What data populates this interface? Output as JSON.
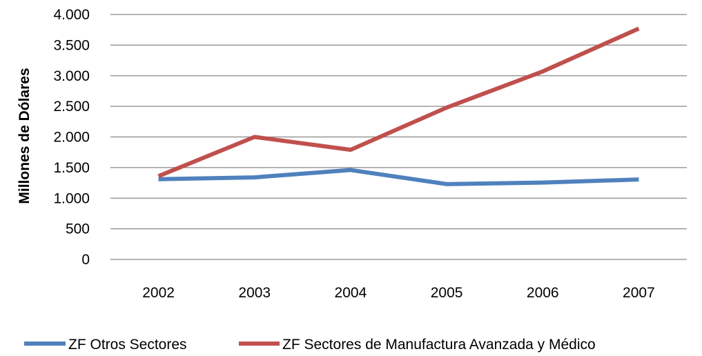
{
  "chart_data": {
    "type": "line",
    "categories": [
      "2002",
      "2003",
      "2004",
      "2005",
      "2006",
      "2007"
    ],
    "series": [
      {
        "name": "ZF Otros Sectores",
        "color": "#4F81BD",
        "values": [
          1310,
          1340,
          1460,
          1230,
          1255,
          1305
        ]
      },
      {
        "name": "ZF Sectores de Manufactura  Avanzada y Médico",
        "color": "#C0504D",
        "values": [
          1360,
          2000,
          1790,
          2480,
          3070,
          3770
        ]
      }
    ],
    "y_ticks": [
      {
        "value": 0,
        "label": "0"
      },
      {
        "value": 500,
        "label": "500"
      },
      {
        "value": 1000,
        "label": "1.000"
      },
      {
        "value": 1500,
        "label": "1.500"
      },
      {
        "value": 2000,
        "label": "2.000"
      },
      {
        "value": 2500,
        "label": "2.500"
      },
      {
        "value": 3000,
        "label": "3.000"
      },
      {
        "value": 3500,
        "label": "3.500"
      },
      {
        "value": 4000,
        "label": "4.000"
      }
    ],
    "ylim": [
      0,
      4000
    ],
    "xlabel": "",
    "ylabel": "Millones de Dólares",
    "grid": true,
    "legend_position": "bottom"
  }
}
